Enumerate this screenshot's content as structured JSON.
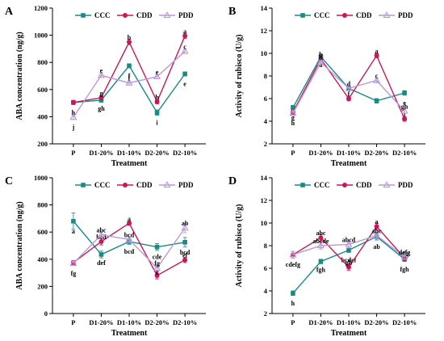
{
  "chart_data": [
    {
      "panel": "A",
      "type": "line",
      "categories": [
        "P",
        "D1-20%",
        "D1-10%",
        "D2-20%",
        "D2-10%"
      ],
      "xlabel": "Treatment",
      "ylabel": "ABA concentration (ng/g)",
      "ylim": [
        200,
        1200
      ],
      "yticks": [
        200,
        400,
        600,
        800,
        1000,
        1200
      ],
      "legend_position": "top",
      "grid": false,
      "series": [
        {
          "name": "CCC",
          "color": "#1a8a86",
          "marker": "square",
          "values": [
            505,
            522,
            775,
            430,
            715
          ],
          "errors": [
            15,
            15,
            15,
            20,
            15
          ],
          "labels": [
            "h",
            "gh",
            "f",
            "i",
            "e"
          ]
        },
        {
          "name": "CDD",
          "color": "#c8185a",
          "marker": "circle",
          "values": [
            505,
            540,
            950,
            510,
            995
          ],
          "errors": [
            15,
            15,
            20,
            15,
            20
          ],
          "labels": [
            "",
            "g",
            "b",
            "h",
            "a"
          ]
        },
        {
          "name": "PDD",
          "color": "#b99ad6",
          "marker": "triangle",
          "values": [
            395,
            705,
            648,
            695,
            882
          ],
          "errors": [
            15,
            15,
            15,
            15,
            15
          ],
          "labels": [
            "j",
            "e",
            "f",
            "e",
            "c"
          ]
        }
      ]
    },
    {
      "panel": "B",
      "type": "line",
      "categories": [
        "P",
        "D1-20%",
        "D1-10%",
        "D2-20%",
        "D2-10%"
      ],
      "xlabel": "Treatment",
      "ylabel": "Activity of rubisco (U/g)",
      "ylim": [
        2,
        14
      ],
      "yticks": [
        2,
        4,
        6,
        8,
        10,
        12,
        14
      ],
      "legend_position": "top",
      "grid": false,
      "series": [
        {
          "name": "CCC",
          "color": "#1a8a86",
          "marker": "square",
          "values": [
            5.2,
            9.7,
            6.9,
            5.8,
            6.5
          ],
          "errors": [
            0.2,
            0.2,
            0.2,
            0.2,
            0.2
          ],
          "labels": [
            "g",
            "a",
            "d",
            "",
            "e"
          ]
        },
        {
          "name": "CDD",
          "color": "#c8185a",
          "marker": "circle",
          "values": [
            4.8,
            9.5,
            6.0,
            9.8,
            4.2
          ],
          "errors": [
            0.2,
            0.2,
            0.2,
            0.2,
            0.2
          ],
          "labels": [
            "",
            "b",
            "f",
            "a",
            "i"
          ]
        },
        {
          "name": "PDD",
          "color": "#b99ad6",
          "marker": "triangle",
          "values": [
            4.7,
            9.2,
            6.9,
            7.6,
            4.9
          ],
          "errors": [
            0.2,
            0.2,
            0.2,
            0.2,
            0.2
          ],
          "labels": [
            "h",
            "b",
            "d",
            "c",
            "gh"
          ]
        }
      ]
    },
    {
      "panel": "C",
      "type": "line",
      "categories": [
        "P",
        "D1-20%",
        "D1-10%",
        "D2-20%",
        "D2-10%"
      ],
      "xlabel": "Treatment",
      "ylabel": "ABA concentration (ng/g)",
      "ylim": [
        0,
        1000
      ],
      "yticks": [
        0,
        200,
        400,
        600,
        800,
        1000
      ],
      "legend_position": "top",
      "grid": false,
      "series": [
        {
          "name": "CCC",
          "color": "#1a8a86",
          "marker": "square",
          "values": [
            680,
            435,
            530,
            490,
            525
          ],
          "errors": [
            60,
            25,
            20,
            25,
            35
          ],
          "labels": [
            "a",
            "def",
            "bcd",
            "cde",
            "bcd"
          ]
        },
        {
          "name": "CDD",
          "color": "#c8185a",
          "marker": "circle",
          "values": [
            375,
            530,
            665,
            280,
            395
          ],
          "errors": [
            15,
            25,
            15,
            25,
            20
          ],
          "labels": [
            "",
            "bcd",
            "a",
            "g",
            "ef"
          ]
        },
        {
          "name": "PDD",
          "color": "#b99ad6",
          "marker": "triangle",
          "values": [
            370,
            580,
            545,
            335,
            630
          ],
          "errors": [
            15,
            20,
            20,
            25,
            35
          ],
          "labels": [
            "fg",
            "abc",
            "bcd",
            "fg",
            "ab"
          ]
        }
      ]
    },
    {
      "panel": "D",
      "type": "line",
      "categories": [
        "P",
        "D1-20%",
        "D1-10%",
        "D2-20%",
        "D2-10%"
      ],
      "xlabel": "Treatment",
      "ylabel": "Activity of rubisco (U/g)",
      "ylim": [
        2,
        14
      ],
      "yticks": [
        2,
        4,
        6,
        8,
        10,
        12,
        14
      ],
      "legend_position": "top",
      "grid": false,
      "series": [
        {
          "name": "CCC",
          "color": "#1a8a86",
          "marker": "square",
          "values": [
            3.8,
            6.6,
            7.6,
            8.8,
            6.8
          ],
          "errors": [
            0.2,
            0.2,
            0.2,
            0.3,
            0.2
          ],
          "labels": [
            "h",
            "fgh",
            "bcdef",
            "ab",
            "fgh"
          ]
        },
        {
          "name": "CDD",
          "color": "#c8185a",
          "marker": "circle",
          "values": [
            7.2,
            8.7,
            6.1,
            9.7,
            6.9
          ],
          "errors": [
            0.3,
            0.3,
            0.3,
            0.3,
            0.2
          ],
          "labels": [
            "",
            "abc",
            "gh",
            "a",
            "efg"
          ]
        },
        {
          "name": "PDD",
          "color": "#b99ad6",
          "marker": "triangle",
          "values": [
            7.2,
            8.0,
            8.1,
            8.9,
            7.0
          ],
          "errors": [
            0.3,
            0.3,
            0.3,
            0.3,
            0.2
          ],
          "labels": [
            "cdefg",
            "abcde",
            "abcd",
            "abc",
            "defg"
          ]
        }
      ]
    }
  ]
}
